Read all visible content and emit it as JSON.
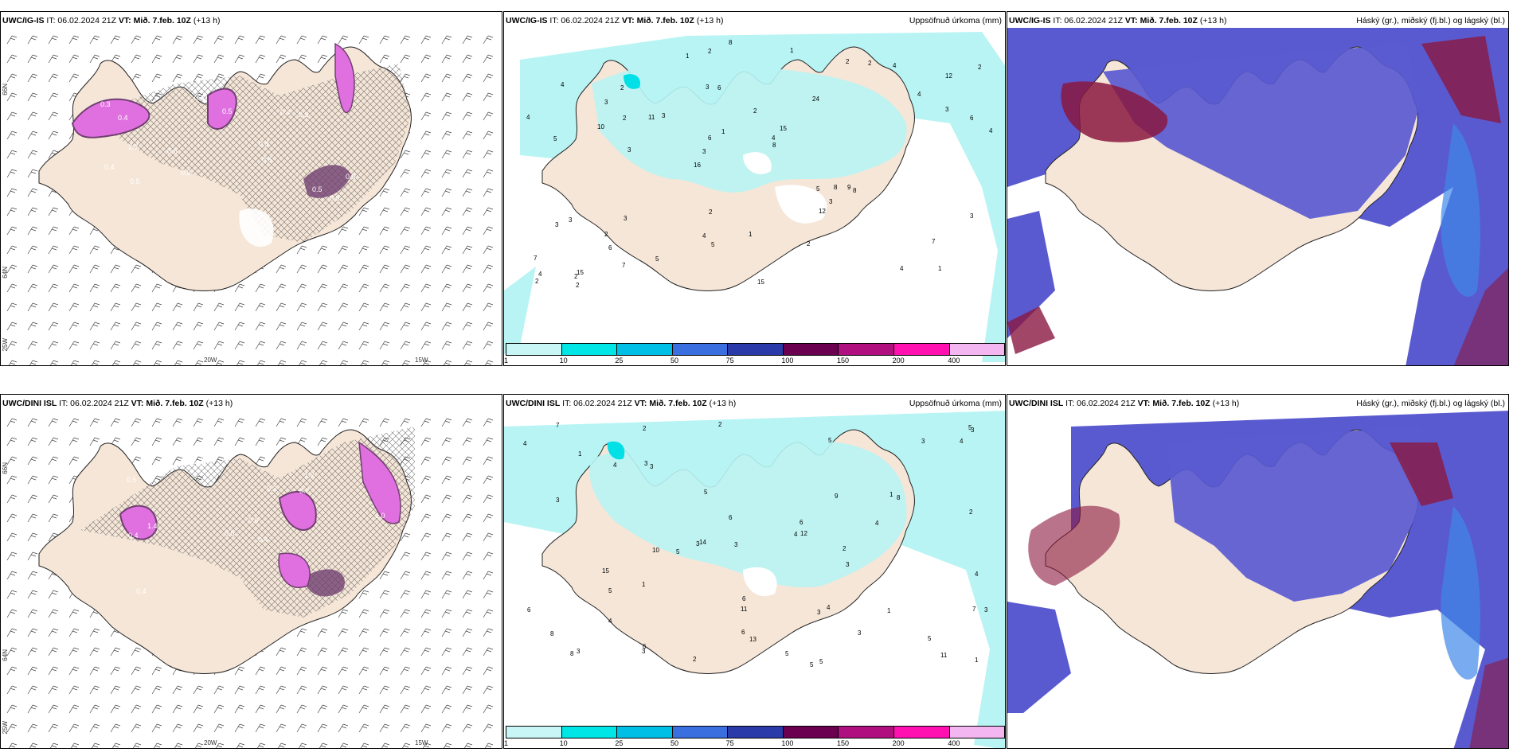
{
  "panels": {
    "p1": {
      "model": "UWC/IG-IS",
      "it": "IT: 06.02.2024 21Z",
      "vt_label": "VT:",
      "vt": "Mið. 7.feb. 10Z",
      "lead": "(+13 h)",
      "right": ""
    },
    "p2": {
      "model": "UWC/IG-IS",
      "it": "IT: 06.02.2024 21Z",
      "vt_label": "VT:",
      "vt": "Mið. 7.feb. 10Z",
      "lead": "(+13 h)",
      "right": "Uppsöfnuð úrkoma (mm)"
    },
    "p3": {
      "model": "UWC/IG-IS",
      "it": "IT: 06.02.2024 21Z",
      "vt_label": "VT:",
      "vt": "Mið. 7.feb. 10Z",
      "lead": "(+13 h)",
      "right": "Háský (gr.), miðský (fj.bl.) og lágský (bl.)"
    },
    "p4": {
      "model": "UWC/DINI ISL",
      "it": "IT: 06.02.2024 21Z",
      "vt_label": "VT:",
      "vt": "Mið. 7.feb. 10Z",
      "lead": "(+13 h)",
      "right": ""
    },
    "p5": {
      "model": "UWC/DINI ISL",
      "it": "IT: 06.02.2024 21Z",
      "vt_label": "VT:",
      "vt": "Mið. 7.feb. 10Z",
      "lead": "(+13 h)",
      "right": "Uppsöfnuð úrkoma (mm)"
    },
    "p6": {
      "model": "UWC/DINI ISL",
      "it": "IT: 06.02.2024 21Z",
      "vt_label": "VT:",
      "vt": "Mið. 7.feb. 10Z",
      "lead": "(+13 h)",
      "right": "Háský (gr.), miðský (fj.bl.) og lágský (bl.)"
    }
  },
  "axes": {
    "lat_top": "66N",
    "lat_bottom": "64N",
    "lon_left": "20W",
    "lon_right": "15W",
    "lon_edge": "25W"
  },
  "legend": {
    "ticks": [
      "1",
      "10",
      "25",
      "50",
      "75",
      "100",
      "150",
      "200",
      "400"
    ],
    "colors": [
      "#c8f6f6",
      "#00e6e6",
      "#00bfe6",
      "#3a6fe0",
      "#2a3aa8",
      "#6b0050",
      "#b0107f",
      "#ff10b0",
      "#f4b6f0"
    ]
  },
  "colors": {
    "land": "#f5e6d8",
    "precip_light": "#b8f4f4",
    "precip_mid": "#00e0e6",
    "ice_pink": "#e070e0",
    "ice_dark": "#704070",
    "cloud_high": "#5a5ad0",
    "cloud_mid": "#3f88e8",
    "cloud_low": "#8a1840",
    "coast": "#222222"
  },
  "precip_labels_top": [
    "1",
    "5",
    "12",
    "16",
    "24",
    "15",
    "3",
    "2",
    "3",
    "3",
    "7",
    "6",
    "6",
    "15",
    "8",
    "4",
    "2",
    "4",
    "5",
    "3",
    "3",
    "4",
    "6",
    "2",
    "2",
    "3",
    "4",
    "7",
    "9",
    "15",
    "11",
    "10",
    "12",
    "7",
    "6",
    "4",
    "4",
    "5",
    "8",
    "3",
    "4",
    "2",
    "3",
    "2",
    "2",
    "2",
    "2",
    "1",
    "4",
    "8",
    "3",
    "4",
    "3",
    "2",
    "2",
    "1",
    "1",
    "1",
    "3",
    "2",
    "5",
    "8",
    "2"
  ],
  "precip_labels_bottom": [
    "2",
    "5",
    "6",
    "3",
    "2",
    "1",
    "10",
    "11",
    "2",
    "5",
    "3",
    "13",
    "14",
    "11",
    "5",
    "4",
    "3",
    "3",
    "5",
    "4",
    "3",
    "3",
    "6",
    "8",
    "8",
    "15",
    "6",
    "5",
    "7",
    "3",
    "3",
    "5",
    "6",
    "4",
    "4",
    "2",
    "7",
    "8",
    "9",
    "5",
    "12",
    "4",
    "3",
    "3",
    "3",
    "4",
    "4",
    "5",
    "4",
    "6",
    "5",
    "2",
    "1",
    "1",
    "1",
    "1",
    "3",
    "6",
    "3"
  ],
  "ice_labels_top": [
    "0.9",
    "2.7",
    "0.6",
    "0.3",
    "0.5",
    "0.4",
    "0.5",
    "0.6",
    "0.9",
    "0.5",
    "0.4",
    "0.5",
    "0.8",
    "0.4",
    "0.3",
    "0.4"
  ],
  "ice_labels_bottom": [
    "2.0",
    "1.2",
    "1.0",
    "0.5",
    "0.4",
    "1.4",
    "0.5",
    "0.7",
    "0.4",
    "0.3",
    "0.6",
    "0.4",
    "0.9"
  ]
}
